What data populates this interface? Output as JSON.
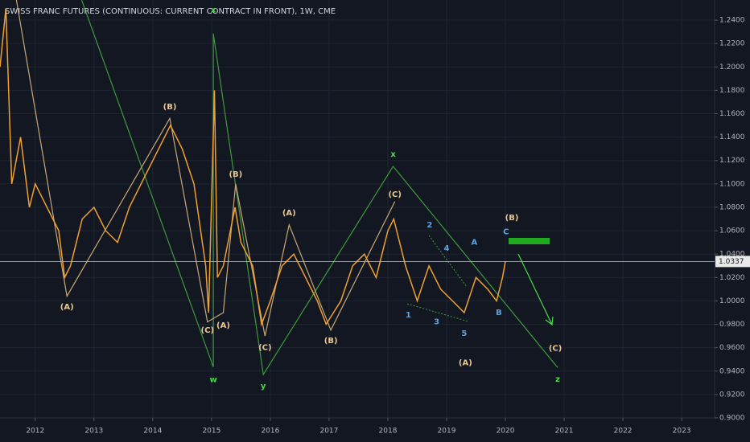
{
  "chart_data": {
    "type": "line",
    "title": "SWISS FRANC FUTURES (CONTINUOUS: CURRENT CONTRACT IN FRONT), 1W, CME",
    "color": "#f0a030",
    "x": [
      2011.4,
      2011.5,
      2011.6,
      2011.75,
      2011.9,
      2012.0,
      2012.2,
      2012.4,
      2012.5,
      2012.6,
      2012.8,
      2013.0,
      2013.2,
      2013.4,
      2013.6,
      2013.8,
      2014.0,
      2014.3,
      2014.5,
      2014.7,
      2014.9,
      2014.95,
      2015.05,
      2015.1,
      2015.2,
      2015.4,
      2015.5,
      2015.7,
      2015.85,
      2016.0,
      2016.2,
      2016.4,
      2016.6,
      2016.8,
      2016.95,
      2017.2,
      2017.4,
      2017.6,
      2017.8,
      2018.0,
      2018.1,
      2018.3,
      2018.5,
      2018.7,
      2018.9,
      2019.1,
      2019.3,
      2019.5,
      2019.7,
      2019.85,
      2019.95,
      2020.0
    ],
    "values": [
      1.2,
      1.25,
      1.1,
      1.14,
      1.08,
      1.1,
      1.08,
      1.06,
      1.02,
      1.03,
      1.07,
      1.08,
      1.06,
      1.05,
      1.08,
      1.1,
      1.12,
      1.15,
      1.13,
      1.1,
      1.03,
      0.99,
      1.18,
      1.02,
      1.03,
      1.08,
      1.05,
      1.03,
      0.98,
      1.0,
      1.03,
      1.04,
      1.02,
      1.0,
      0.98,
      1.0,
      1.03,
      1.04,
      1.02,
      1.06,
      1.07,
      1.03,
      1.0,
      1.03,
      1.01,
      1.0,
      0.99,
      1.02,
      1.01,
      1.0,
      1.02,
      1.0337
    ],
    "current_price": 1.0337,
    "xlim": [
      2011.4,
      2023.56
    ],
    "ylim": [
      0.9,
      1.2572
    ],
    "xticks": [
      2012,
      2013,
      2014,
      2015,
      2016,
      2017,
      2018,
      2019,
      2020,
      2021,
      2022,
      2023
    ],
    "yticks": [
      {
        "value": 0.9,
        "label": "0.9000"
      },
      {
        "value": 0.92,
        "label": "0.9200"
      },
      {
        "value": 0.94,
        "label": "0.9400"
      },
      {
        "value": 0.96,
        "label": "0.9600"
      },
      {
        "value": 0.98,
        "label": "0.9800"
      },
      {
        "value": 1.0,
        "label": "1.0000"
      },
      {
        "value": 1.02,
        "label": "1.0200"
      },
      {
        "value": 1.04,
        "label": "1.0400"
      },
      {
        "value": 1.06,
        "label": "1.0600"
      },
      {
        "value": 1.08,
        "label": "1.0800"
      },
      {
        "value": 1.1,
        "label": "1.1000"
      },
      {
        "value": 1.12,
        "label": "1.1200"
      },
      {
        "value": 1.14,
        "label": "1.1400"
      },
      {
        "value": 1.16,
        "label": "1.1600"
      },
      {
        "value": 1.18,
        "label": "1.1800"
      },
      {
        "value": 1.2,
        "label": "1.2000"
      },
      {
        "value": 1.22,
        "label": "1.2200"
      },
      {
        "value": 1.24,
        "label": "1.2400"
      }
    ],
    "grid": true,
    "wave_lines": [
      {
        "color": "#3d9a3d",
        "x": [
          2012.77,
          2015.03,
          2015.03,
          2015.88,
          2018.09,
          2020.89
        ],
        "y": [
          1.26,
          0.9435,
          1.2285,
          0.937,
          1.115,
          0.943
        ]
      },
      {
        "color": "#c8a878",
        "x": [
          2011.67,
          2012.54,
          2014.29,
          2014.93,
          2015.2,
          2015.41,
          2015.91,
          2016.32,
          2017.03,
          2018.12
        ],
        "y": [
          1.26,
          1.004,
          1.156,
          0.982,
          0.99,
          1.1,
          0.97,
          1.065,
          0.975,
          1.085
        ]
      }
    ],
    "annotations": [
      {
        "text": "x",
        "x": 2015.03,
        "y": 1.2486,
        "color": "#4cd94c"
      },
      {
        "text": "w",
        "x": 2015.03,
        "y": 0.9328,
        "color": "#4cd94c"
      },
      {
        "text": "y",
        "x": 2015.88,
        "y": 0.927,
        "color": "#4cd94c"
      },
      {
        "text": "x",
        "x": 2018.09,
        "y": 1.1252,
        "color": "#4cd94c"
      },
      {
        "text": "z",
        "x": 2020.89,
        "y": 0.933,
        "color": "#4cd94c"
      },
      {
        "text": "(A)",
        "x": 2012.54,
        "y": 0.9947,
        "color": "#e8c890"
      },
      {
        "text": "(B)",
        "x": 2014.29,
        "y": 1.1658,
        "color": "#e8c890"
      },
      {
        "text": "(C)",
        "x": 2014.93,
        "y": 0.975,
        "color": "#e8c890"
      },
      {
        "text": "(A)",
        "x": 2015.2,
        "y": 0.979,
        "color": "#e8c890"
      },
      {
        "text": "(B)",
        "x": 2015.41,
        "y": 1.108,
        "color": "#e8c890"
      },
      {
        "text": "(C)",
        "x": 2015.91,
        "y": 0.96,
        "color": "#e8c890"
      },
      {
        "text": "(A)",
        "x": 2016.32,
        "y": 1.075,
        "color": "#e8c890"
      },
      {
        "text": "(B)",
        "x": 2017.03,
        "y": 0.966,
        "color": "#e8c890"
      },
      {
        "text": "(C)",
        "x": 2018.12,
        "y": 1.091,
        "color": "#e8c890"
      },
      {
        "text": "(B)",
        "x": 2020.11,
        "y": 1.071,
        "color": "#e8c890"
      },
      {
        "text": "(A)",
        "x": 2019.32,
        "y": 0.947,
        "color": "#e8c890"
      },
      {
        "text": "(C)",
        "x": 2020.85,
        "y": 0.9595,
        "color": "#e8c890"
      },
      {
        "text": "1",
        "x": 2018.35,
        "y": 0.988,
        "color": "#5ba3e0"
      },
      {
        "text": "2",
        "x": 2018.71,
        "y": 1.065,
        "color": "#5ba3e0"
      },
      {
        "text": "3",
        "x": 2018.83,
        "y": 0.982,
        "color": "#5ba3e0"
      },
      {
        "text": "4",
        "x": 2019.0,
        "y": 1.045,
        "color": "#5ba3e0"
      },
      {
        "text": "5",
        "x": 2019.3,
        "y": 0.972,
        "color": "#5ba3e0"
      },
      {
        "text": "A",
        "x": 2019.47,
        "y": 1.05,
        "color": "#5ba3e0"
      },
      {
        "text": "B",
        "x": 2019.89,
        "y": 0.99,
        "color": "#5ba3e0"
      },
      {
        "text": "C",
        "x": 2020.01,
        "y": 1.059,
        "color": "#5ba3e0"
      }
    ]
  }
}
